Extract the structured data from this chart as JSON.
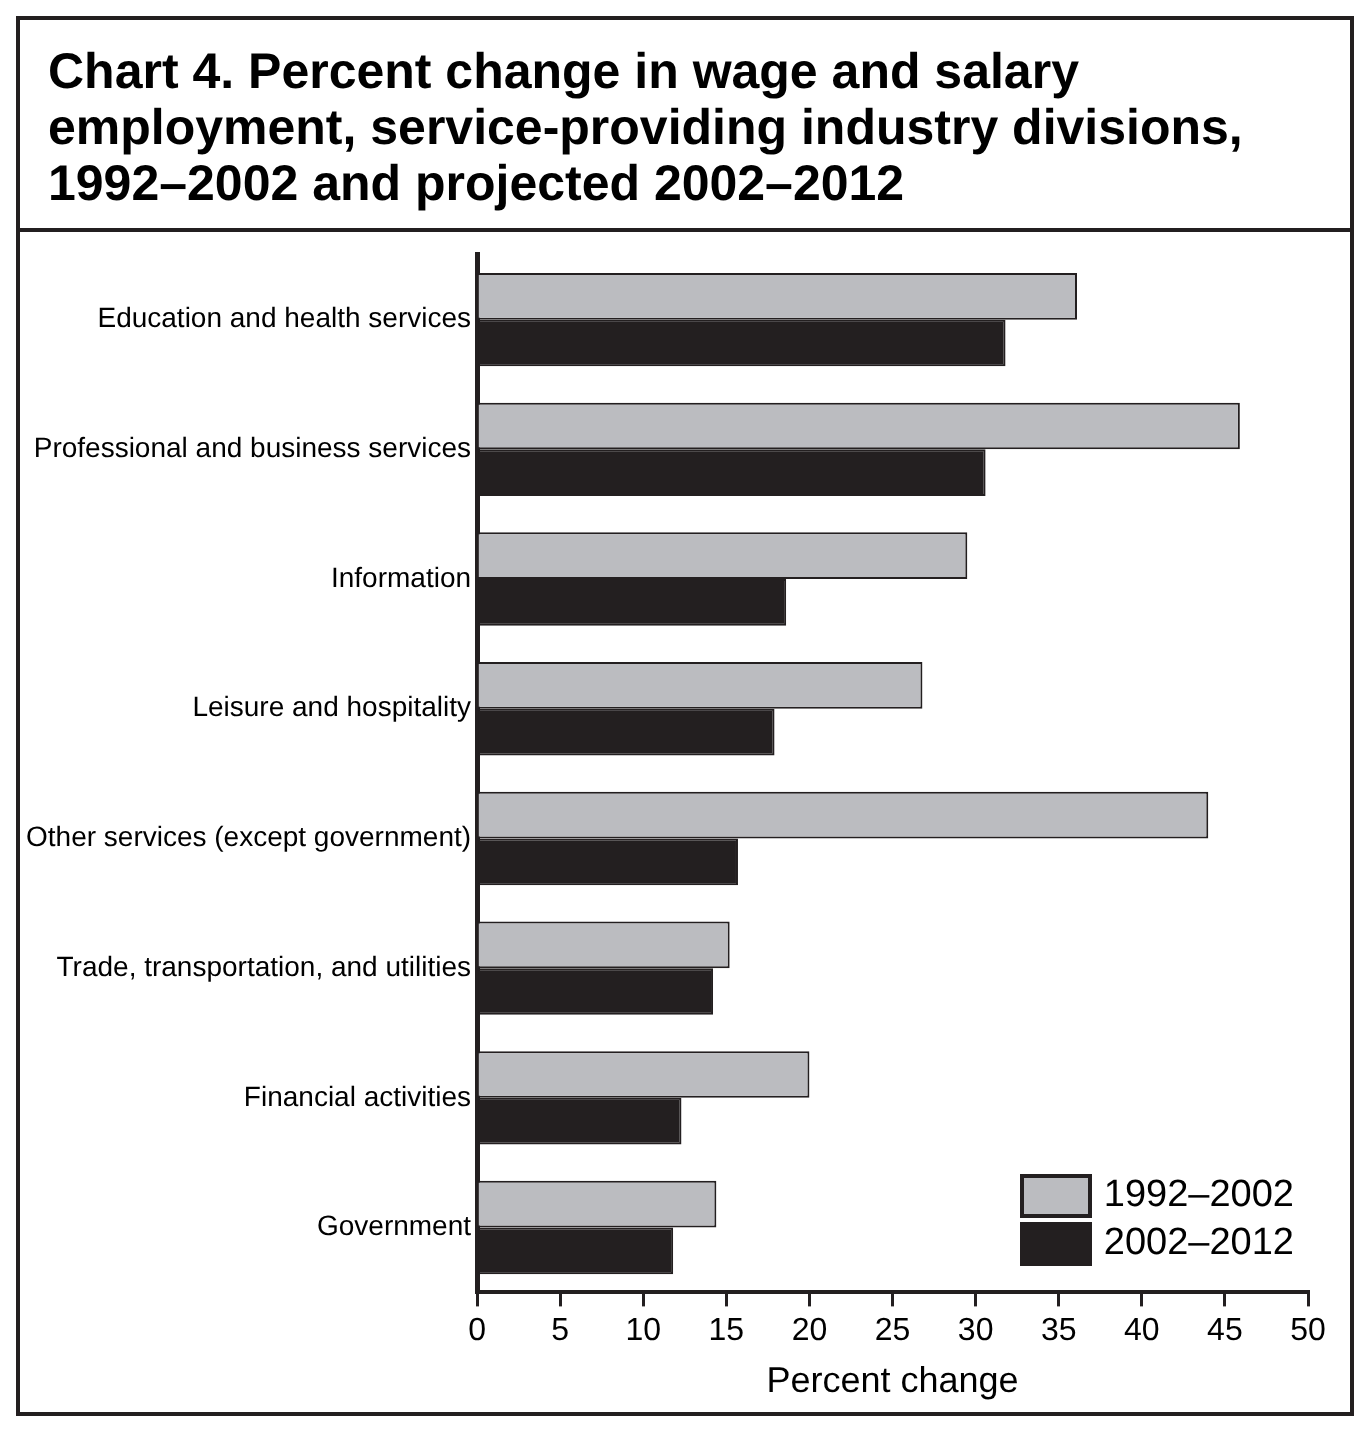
{
  "chart_data": {
    "type": "bar",
    "orientation": "horizontal",
    "title": "Chart 4.  Percent change in wage and salary employment, service-providing industry divisions, 1992–2002 and projected 2002–2012",
    "xlabel": "Percent change",
    "categories": [
      "Education and health services",
      "Professional and business services",
      "Information",
      "Leisure and hospitality",
      "Other services (except government)",
      "Trade, transportation, and utilities",
      "Financial activities",
      "Government"
    ],
    "series": [
      {
        "name": "1992–2002",
        "color": "#bbbcc0",
        "values": [
          36.1,
          45.9,
          29.5,
          26.8,
          44.0,
          15.2,
          20.0,
          14.4
        ]
      },
      {
        "name": "2002–2012",
        "color": "#231f20",
        "values": [
          31.8,
          30.6,
          18.6,
          17.9,
          15.7,
          14.2,
          12.3,
          11.8
        ]
      }
    ],
    "xlim": [
      0,
      50
    ],
    "xticks": [
      0,
      5,
      10,
      15,
      20,
      25,
      30,
      35,
      40,
      45,
      50
    ],
    "grid": false,
    "legend": "bottom right"
  }
}
